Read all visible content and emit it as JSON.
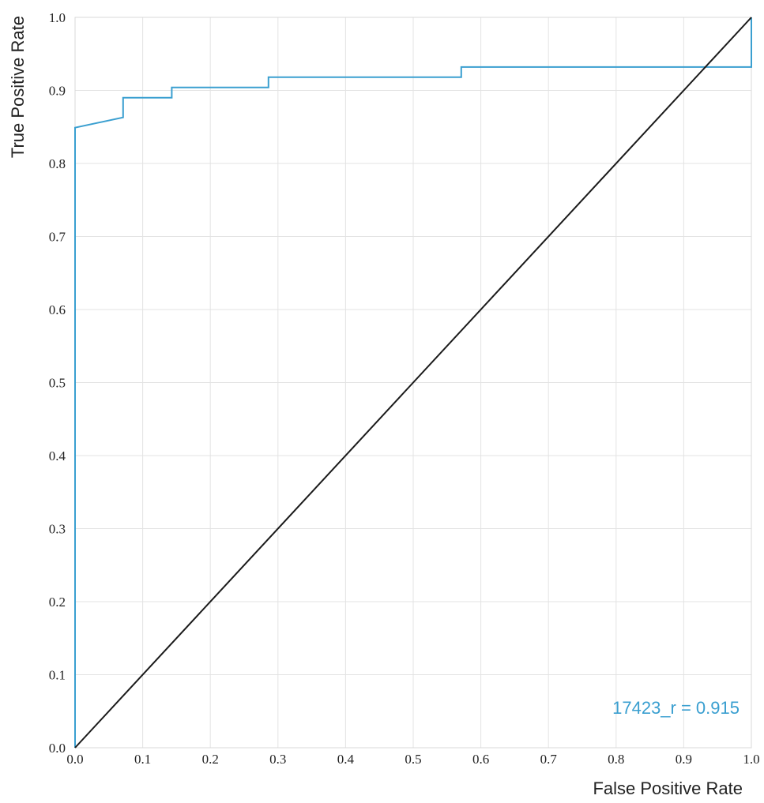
{
  "chart_data": {
    "type": "line",
    "xlabel": "False Positive Rate",
    "ylabel": "True Positive Rate",
    "xlim": [
      0,
      1
    ],
    "ylim": [
      0,
      1
    ],
    "x_ticks": [
      "0.0",
      "0.1",
      "0.2",
      "0.3",
      "0.4",
      "0.5",
      "0.6",
      "0.7",
      "0.8",
      "0.9",
      "1.0"
    ],
    "y_ticks": [
      "0.0",
      "0.1",
      "0.2",
      "0.3",
      "0.4",
      "0.5",
      "0.6",
      "0.7",
      "0.8",
      "0.9",
      "1.0"
    ],
    "grid": true,
    "series": [
      {
        "color": "#3a9fd0",
        "x": [
          0,
          0,
          0.071,
          0.071,
          0.143,
          0.143,
          0.286,
          0.286,
          0.571,
          0.571,
          1.0,
          1.0
        ],
        "y": [
          0,
          0.849,
          0.863,
          0.89,
          0.89,
          0.904,
          0.904,
          0.918,
          0.918,
          0.932,
          0.932,
          1.0
        ]
      },
      {
        "color": "#1a1a1a",
        "x": [
          0,
          1
        ],
        "y": [
          0,
          1
        ]
      }
    ],
    "annotations": [
      {
        "text": "17423_r = 0.915",
        "color": "#3a9fd0",
        "position": "bottom-right"
      }
    ]
  }
}
